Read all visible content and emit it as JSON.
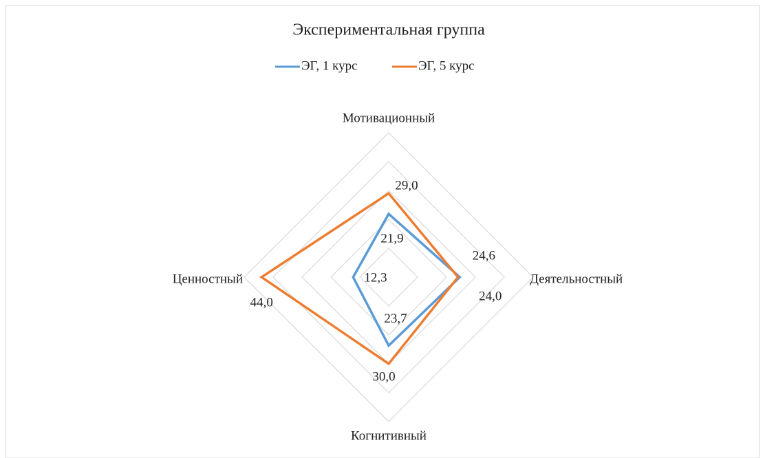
{
  "chart_data": {
    "type": "radar",
    "title": "Экспериментальная группа",
    "categories": [
      "Мотивационный",
      "Деятельностный",
      "Когнитивный",
      "Ценностный"
    ],
    "series": [
      {
        "name": "ЭГ, 1 курс",
        "color": "#5b9bd5",
        "values": [
          21.9,
          24.6,
          23.7,
          12.3
        ],
        "value_labels": [
          "21,9",
          "24,6",
          "23,7",
          "12,3"
        ]
      },
      {
        "name": "ЭГ, 5 курс",
        "color": "#ed7d31",
        "values": [
          29.0,
          24.0,
          30.0,
          44.0
        ],
        "value_labels": [
          "29,0",
          "24,0",
          "30,0",
          "44,0"
        ]
      }
    ],
    "ylim": [
      0,
      50
    ],
    "yticks": [
      0,
      10,
      20,
      30,
      40,
      50
    ],
    "grid": true,
    "legend": "top"
  }
}
